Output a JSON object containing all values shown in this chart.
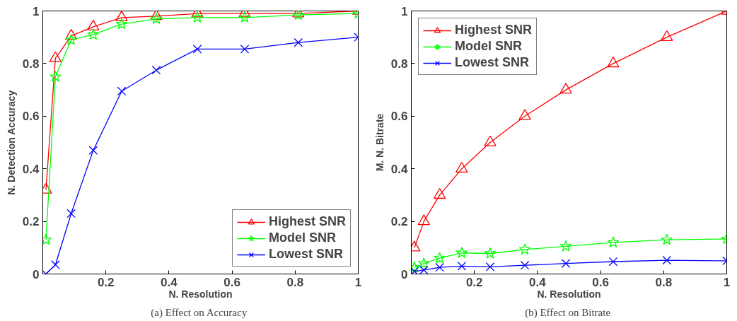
{
  "chart_data": [
    {
      "type": "line",
      "xlabel": "N. Resolution",
      "ylabel": "N. Detection Accuracy",
      "annotations": [
        "(a)  Effect on Accuracy"
      ],
      "x": [
        0.01,
        0.04,
        0.09,
        0.16,
        0.25,
        0.36,
        0.49,
        0.64,
        0.81,
        1
      ],
      "xlim": [
        0,
        1
      ],
      "xticks": [
        0.2,
        0.4,
        0.6,
        0.8,
        1
      ],
      "ylim": [
        0,
        1
      ],
      "yticks": [
        0,
        0.2,
        0.4,
        0.6,
        0.8,
        1
      ],
      "grid": false,
      "legend": "bottom right",
      "line_style": "solid",
      "series": [
        {
          "name": "Highest SNR",
          "color": "#ff0000",
          "marker": "triangle",
          "values": [
            0.32,
            0.82,
            0.905,
            0.94,
            0.975,
            0.98,
            0.99,
            0.99,
            0.99,
            1.0
          ]
        },
        {
          "name": "Model SNR",
          "color": "#00ff00",
          "marker": "star",
          "values": [
            0.13,
            0.75,
            0.89,
            0.91,
            0.95,
            0.97,
            0.975,
            0.975,
            0.985,
            0.99
          ]
        },
        {
          "name": "Lowest SNR",
          "color": "#0000ff",
          "marker": "cross",
          "values": [
            0,
            0.035,
            0.23,
            0.47,
            0.695,
            0.775,
            0.855,
            0.855,
            0.88,
            0.9
          ]
        }
      ]
    },
    {
      "type": "line",
      "xlabel": "N. Resolution",
      "ylabel": "M. N. Bitrate",
      "annotations": [
        "(b)  Effect on Bitrate"
      ],
      "x": [
        0.01,
        0.04,
        0.09,
        0.16,
        0.25,
        0.36,
        0.49,
        0.64,
        0.81,
        1
      ],
      "xlim": [
        0,
        1
      ],
      "xticks": [
        0.2,
        0.4,
        0.6,
        0.8,
        1
      ],
      "ylim": [
        0,
        1
      ],
      "yticks": [
        0,
        0.2,
        0.4,
        0.6,
        0.8,
        1
      ],
      "grid": false,
      "legend": "top left",
      "line_style": "solid",
      "series": [
        {
          "name": "Highest SNR",
          "color": "#ff0000",
          "marker": "triangle",
          "values": [
            0.1,
            0.2,
            0.3,
            0.4,
            0.5,
            0.6,
            0.7,
            0.8,
            0.9,
            1.0
          ]
        },
        {
          "name": "Model SNR",
          "color": "#00ff00",
          "marker": "star",
          "values": [
            0.025,
            0.04,
            0.06,
            0.08,
            0.078,
            0.093,
            0.105,
            0.12,
            0.13,
            0.133
          ]
        },
        {
          "name": "Lowest SNR",
          "color": "#0000ff",
          "marker": "cross",
          "values": [
            0.01,
            0.015,
            0.025,
            0.03,
            0.027,
            0.033,
            0.04,
            0.047,
            0.052,
            0.05
          ]
        }
      ]
    }
  ]
}
